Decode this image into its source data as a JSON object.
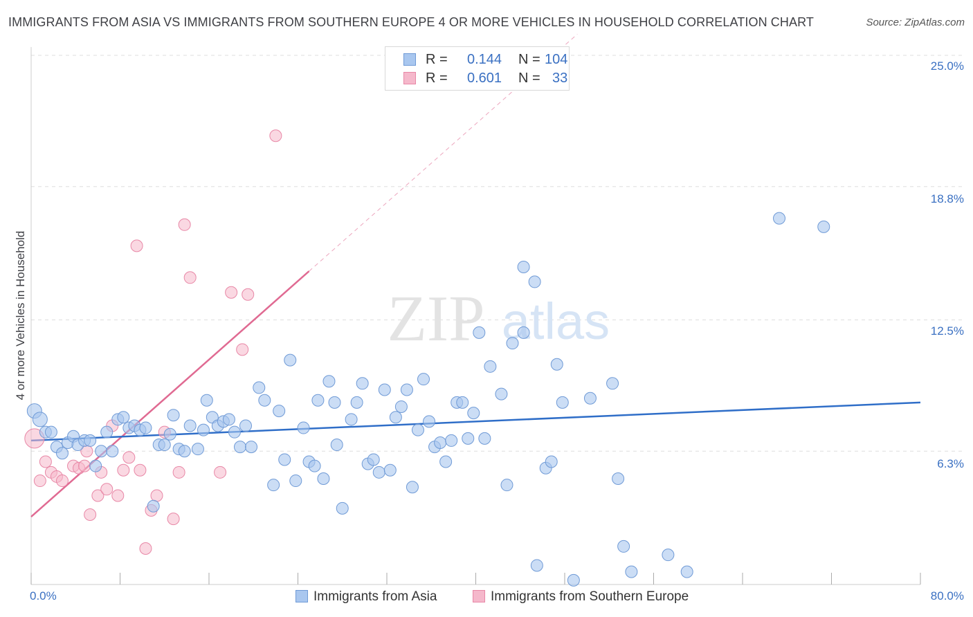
{
  "header": {
    "title": "IMMIGRANTS FROM ASIA VS IMMIGRANTS FROM SOUTHERN EUROPE 4 OR MORE VEHICLES IN HOUSEHOLD CORRELATION CHART",
    "source": "Source: ZipAtlas.com"
  },
  "watermark": {
    "zip": "ZIP",
    "atlas": "atlas"
  },
  "legend": {
    "rows": [
      {
        "r_label": "R =",
        "r_value": "0.144",
        "n_label": "N =",
        "n_value": "104",
        "color": "#a9c7ef"
      },
      {
        "r_label": "R =",
        "r_value": "0.601",
        "n_label": "N =",
        "n_value": "33",
        "color": "#f5b8cb"
      }
    ]
  },
  "colors": {
    "asia_fill": "#a9c7ef",
    "asia_stroke": "#6f9ad6",
    "asia_line": "#2f6ec8",
    "europe_fill": "#f5b8cb",
    "europe_stroke": "#e887a6",
    "europe_line": "#e06a92",
    "tick_text": "#3a70c2",
    "grid": "#dddddd"
  },
  "chart_data": {
    "type": "scatter",
    "title": "IMMIGRANTS FROM ASIA VS IMMIGRANTS FROM SOUTHERN EUROPE 4 OR MORE VEHICLES IN HOUSEHOLD CORRELATION CHART",
    "xlabel": "",
    "ylabel": "4 or more Vehicles in Household",
    "xlim": [
      0,
      80
    ],
    "ylim": [
      0,
      25
    ],
    "x_tick_labels": [
      "0.0%",
      "80.0%"
    ],
    "y_ticks": [
      6.3,
      12.5,
      18.8,
      25.0
    ],
    "y_tick_labels": [
      "6.3%",
      "12.5%",
      "18.8%",
      "25.0%"
    ],
    "grid": true,
    "legend_position": "bottom",
    "series": [
      {
        "name": "Immigrants from Asia",
        "trend": [
          [
            0,
            6.8
          ],
          [
            80,
            8.6
          ]
        ],
        "points": [
          [
            0.3,
            8.2
          ],
          [
            0.8,
            7.8
          ],
          [
            1.3,
            7.2
          ],
          [
            1.8,
            7.2
          ],
          [
            2.3,
            6.5
          ],
          [
            2.8,
            6.2
          ],
          [
            3.3,
            6.7
          ],
          [
            3.8,
            7.0
          ],
          [
            4.2,
            6.6
          ],
          [
            4.8,
            6.8
          ],
          [
            5.3,
            6.8
          ],
          [
            5.8,
            5.6
          ],
          [
            6.3,
            6.3
          ],
          [
            6.8,
            7.2
          ],
          [
            7.3,
            6.3
          ],
          [
            7.8,
            7.8
          ],
          [
            8.3,
            7.9
          ],
          [
            8.8,
            7.4
          ],
          [
            9.3,
            7.5
          ],
          [
            9.8,
            7.3
          ],
          [
            10.3,
            7.4
          ],
          [
            11.0,
            3.7
          ],
          [
            11.5,
            6.6
          ],
          [
            12.0,
            6.6
          ],
          [
            12.5,
            7.1
          ],
          [
            12.8,
            8.0
          ],
          [
            13.3,
            6.4
          ],
          [
            13.8,
            6.3
          ],
          [
            14.3,
            7.5
          ],
          [
            15.0,
            6.4
          ],
          [
            15.5,
            7.3
          ],
          [
            15.8,
            8.7
          ],
          [
            16.3,
            7.9
          ],
          [
            16.8,
            7.5
          ],
          [
            17.3,
            7.7
          ],
          [
            17.8,
            7.8
          ],
          [
            18.3,
            7.2
          ],
          [
            18.8,
            6.5
          ],
          [
            19.3,
            7.5
          ],
          [
            19.8,
            6.5
          ],
          [
            20.5,
            9.3
          ],
          [
            21.0,
            8.7
          ],
          [
            21.8,
            4.7
          ],
          [
            22.3,
            8.2
          ],
          [
            22.8,
            5.9
          ],
          [
            23.3,
            10.6
          ],
          [
            23.8,
            4.9
          ],
          [
            24.5,
            7.4
          ],
          [
            25.0,
            5.8
          ],
          [
            25.5,
            5.6
          ],
          [
            25.8,
            8.7
          ],
          [
            26.3,
            5.0
          ],
          [
            26.8,
            9.6
          ],
          [
            27.3,
            8.6
          ],
          [
            27.5,
            6.6
          ],
          [
            28.0,
            3.6
          ],
          [
            28.8,
            7.8
          ],
          [
            29.3,
            8.6
          ],
          [
            29.8,
            9.5
          ],
          [
            30.3,
            5.7
          ],
          [
            30.8,
            5.9
          ],
          [
            31.3,
            5.3
          ],
          [
            31.8,
            9.2
          ],
          [
            32.3,
            5.4
          ],
          [
            32.8,
            7.9
          ],
          [
            33.3,
            8.4
          ],
          [
            33.8,
            9.2
          ],
          [
            34.3,
            4.6
          ],
          [
            34.8,
            7.3
          ],
          [
            35.3,
            9.7
          ],
          [
            35.8,
            7.7
          ],
          [
            36.3,
            6.5
          ],
          [
            36.8,
            6.7
          ],
          [
            37.3,
            5.8
          ],
          [
            37.8,
            6.8
          ],
          [
            38.3,
            8.6
          ],
          [
            38.8,
            8.6
          ],
          [
            39.3,
            6.9
          ],
          [
            39.8,
            8.1
          ],
          [
            40.3,
            11.9
          ],
          [
            40.8,
            6.9
          ],
          [
            41.3,
            10.3
          ],
          [
            42.3,
            9.0
          ],
          [
            42.8,
            4.7
          ],
          [
            43.3,
            11.4
          ],
          [
            44.3,
            11.9
          ],
          [
            44.3,
            15.0
          ],
          [
            45.3,
            14.3
          ],
          [
            45.5,
            0.9
          ],
          [
            46.3,
            5.5
          ],
          [
            46.8,
            5.8
          ],
          [
            47.3,
            10.4
          ],
          [
            47.8,
            8.6
          ],
          [
            48.8,
            0.2
          ],
          [
            50.3,
            8.8
          ],
          [
            52.3,
            9.5
          ],
          [
            52.8,
            5.0
          ],
          [
            53.3,
            1.8
          ],
          [
            54.0,
            0.6
          ],
          [
            57.3,
            1.4
          ],
          [
            59.0,
            0.6
          ],
          [
            67.3,
            17.3
          ],
          [
            71.3,
            16.9
          ]
        ]
      },
      {
        "name": "Immigrants from Southern Europe",
        "trend": [
          [
            0,
            3.2
          ],
          [
            25,
            14.8
          ]
        ],
        "points": [
          [
            0.3,
            6.9
          ],
          [
            0.8,
            4.9
          ],
          [
            1.3,
            5.8
          ],
          [
            1.8,
            5.3
          ],
          [
            2.3,
            5.1
          ],
          [
            2.8,
            4.9
          ],
          [
            3.8,
            5.6
          ],
          [
            4.3,
            5.5
          ],
          [
            4.8,
            5.6
          ],
          [
            5.0,
            6.3
          ],
          [
            5.3,
            3.3
          ],
          [
            6.0,
            4.2
          ],
          [
            6.3,
            5.3
          ],
          [
            6.8,
            4.5
          ],
          [
            7.3,
            7.5
          ],
          [
            7.8,
            4.2
          ],
          [
            8.3,
            5.4
          ],
          [
            8.8,
            6.0
          ],
          [
            9.5,
            16.0
          ],
          [
            9.8,
            5.4
          ],
          [
            10.3,
            1.7
          ],
          [
            10.8,
            3.5
          ],
          [
            11.3,
            4.2
          ],
          [
            12.0,
            7.2
          ],
          [
            12.8,
            3.1
          ],
          [
            13.3,
            5.3
          ],
          [
            13.8,
            17.0
          ],
          [
            14.3,
            14.5
          ],
          [
            17.0,
            5.3
          ],
          [
            18.0,
            13.8
          ],
          [
            19.0,
            11.1
          ],
          [
            19.5,
            13.7
          ],
          [
            22.0,
            21.2
          ]
        ]
      }
    ]
  },
  "bottom_legend": {
    "asia_label": "Immigrants from Asia",
    "europe_label": "Immigrants from Southern Europe"
  }
}
